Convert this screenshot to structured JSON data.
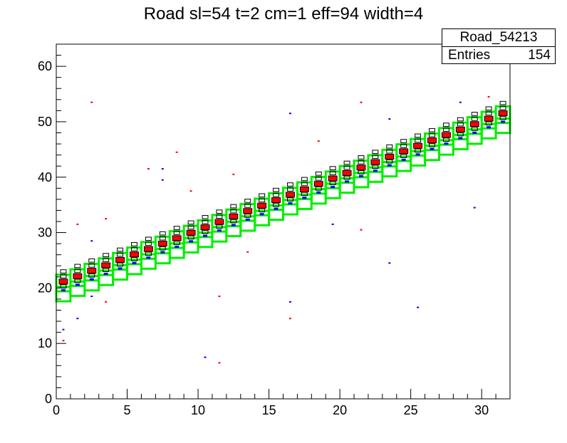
{
  "title": "Road sl=54 t=2 cm=1 eff=94 width=4",
  "stats": {
    "name": "Road_54213",
    "entries_label": "Entries",
    "entries_value": "154"
  },
  "colors": {
    "road": "#00ee00",
    "hit_red": "#ff0000",
    "hit_blue": "#0000ff",
    "box": "#000000",
    "axis": "#000000"
  },
  "chart_data": {
    "type": "heatmap",
    "title": "Road sl=54 t=2 cm=1 eff=94 width=4",
    "xlabel": "",
    "ylabel": "",
    "xlim": [
      0,
      32
    ],
    "ylim": [
      0,
      64
    ],
    "x_ticks": [
      "0",
      "5",
      "10",
      "15",
      "20",
      "25",
      "30"
    ],
    "y_ticks": [
      "0",
      "10",
      "20",
      "30",
      "40",
      "50",
      "60"
    ],
    "x_tick_values": [
      0,
      5,
      10,
      15,
      20,
      25,
      30
    ],
    "y_tick_values": [
      0,
      10,
      20,
      30,
      40,
      50,
      60
    ],
    "road": {
      "slope_per_column": 0.98,
      "intercept": 21.2,
      "width": 4,
      "columns": 32
    },
    "outliers": [
      {
        "x": 0.5,
        "y": 12.5,
        "c": "blue"
      },
      {
        "x": 0.5,
        "y": 10.5,
        "c": "red"
      },
      {
        "x": 1.5,
        "y": 14.5,
        "c": "blue"
      },
      {
        "x": 1.5,
        "y": 31.5,
        "c": "red"
      },
      {
        "x": 2.5,
        "y": 28.5,
        "c": "blue"
      },
      {
        "x": 2.5,
        "y": 53.5,
        "c": "red"
      },
      {
        "x": 2.5,
        "y": 18.5,
        "c": "blue"
      },
      {
        "x": 3.5,
        "y": 17.5,
        "c": "red"
      },
      {
        "x": 3.5,
        "y": 32.5,
        "c": "red"
      },
      {
        "x": 6.5,
        "y": 41.5,
        "c": "red"
      },
      {
        "x": 7.5,
        "y": 41.5,
        "c": "blue"
      },
      {
        "x": 7.5,
        "y": 39.5,
        "c": "blue"
      },
      {
        "x": 8.5,
        "y": 44.5,
        "c": "red"
      },
      {
        "x": 9.5,
        "y": 37.5,
        "c": "red"
      },
      {
        "x": 10.5,
        "y": 7.5,
        "c": "blue"
      },
      {
        "x": 11.5,
        "y": 6.5,
        "c": "red"
      },
      {
        "x": 11.5,
        "y": 18.5,
        "c": "red"
      },
      {
        "x": 12.5,
        "y": 40.5,
        "c": "red"
      },
      {
        "x": 13.5,
        "y": 26.5,
        "c": "red"
      },
      {
        "x": 16.5,
        "y": 51.5,
        "c": "blue"
      },
      {
        "x": 16.5,
        "y": 17.5,
        "c": "blue"
      },
      {
        "x": 16.5,
        "y": 14.5,
        "c": "red"
      },
      {
        "x": 18.5,
        "y": 46.5,
        "c": "red"
      },
      {
        "x": 19.5,
        "y": 31.5,
        "c": "blue"
      },
      {
        "x": 21.5,
        "y": 53.5,
        "c": "red"
      },
      {
        "x": 21.5,
        "y": 30.5,
        "c": "red"
      },
      {
        "x": 23.5,
        "y": 50.5,
        "c": "blue"
      },
      {
        "x": 23.5,
        "y": 24.5,
        "c": "blue"
      },
      {
        "x": 25.5,
        "y": 16.5,
        "c": "blue"
      },
      {
        "x": 28.5,
        "y": 53.5,
        "c": "blue"
      },
      {
        "x": 29.5,
        "y": 34.5,
        "c": "blue"
      },
      {
        "x": 30.5,
        "y": 54.5,
        "c": "red"
      }
    ]
  }
}
